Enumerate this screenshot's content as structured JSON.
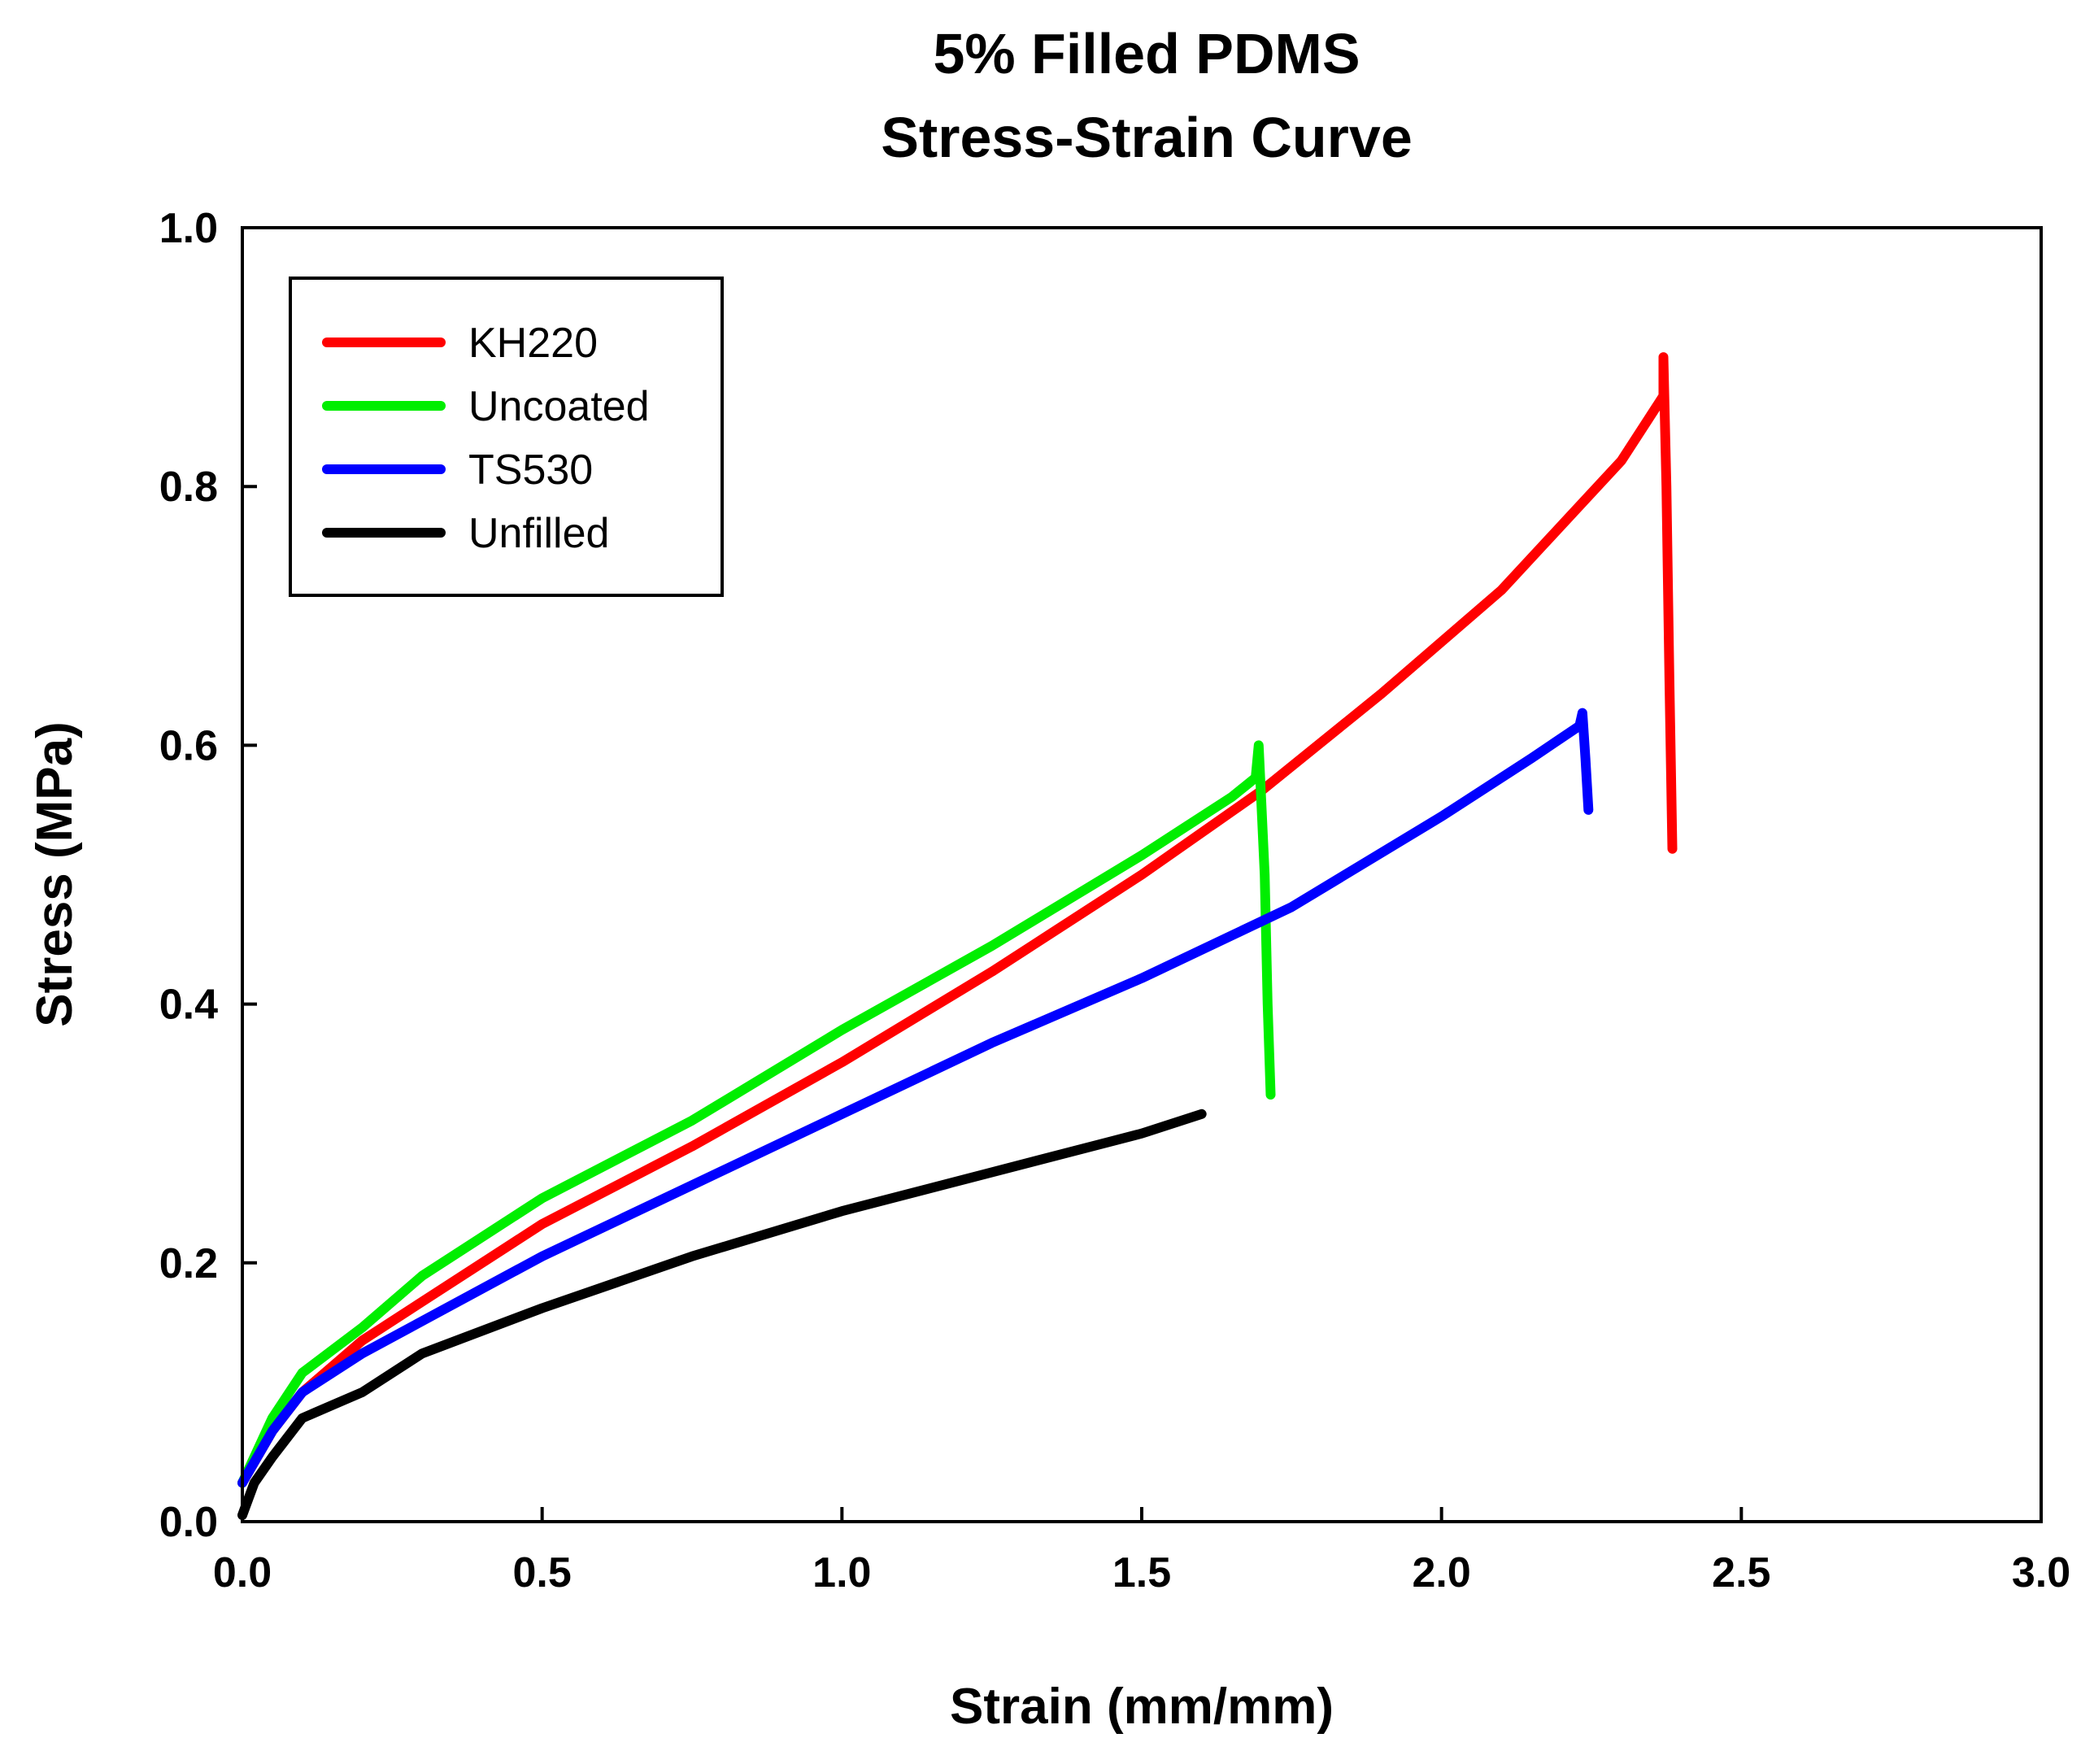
{
  "chart_data": {
    "type": "line",
    "title": [
      "5% Filled PDMS",
      "Stress-Strain Curve"
    ],
    "xlabel": "Strain (mm/mm)",
    "ylabel": "Stress (MPa)",
    "xlim": [
      0.0,
      3.0
    ],
    "ylim": [
      0.0,
      1.0
    ],
    "xticks": [
      0.0,
      0.5,
      1.0,
      1.5,
      2.0,
      2.5,
      3.0
    ],
    "yticks": [
      0.0,
      0.2,
      0.4,
      0.6,
      0.8,
      1.0
    ],
    "xtick_labels": [
      "0.0",
      "0.5",
      "1.0",
      "1.5",
      "2.0",
      "2.5",
      "3.0"
    ],
    "ytick_labels": [
      "0.0",
      "0.2",
      "0.4",
      "0.6",
      "0.8",
      "1.0"
    ],
    "grid": false,
    "legend_position": "top-left",
    "series": [
      {
        "name": "KH220",
        "color": "#ff0000",
        "points": [
          [
            0.0,
            0.03
          ],
          [
            0.05,
            0.07
          ],
          [
            0.1,
            0.1
          ],
          [
            0.2,
            0.14
          ],
          [
            0.3,
            0.17
          ],
          [
            0.5,
            0.23
          ],
          [
            0.75,
            0.29
          ],
          [
            1.0,
            0.355
          ],
          [
            1.25,
            0.425
          ],
          [
            1.5,
            0.5
          ],
          [
            1.7,
            0.565
          ],
          [
            1.9,
            0.64
          ],
          [
            2.1,
            0.72
          ],
          [
            2.3,
            0.82
          ],
          [
            2.37,
            0.87
          ],
          [
            2.37,
            0.9
          ],
          [
            2.375,
            0.8
          ],
          [
            2.38,
            0.65
          ],
          [
            2.385,
            0.52
          ]
        ]
      },
      {
        "name": "Uncoated",
        "color": "#00ee00",
        "points": [
          [
            0.0,
            0.03
          ],
          [
            0.05,
            0.08
          ],
          [
            0.1,
            0.115
          ],
          [
            0.2,
            0.15
          ],
          [
            0.3,
            0.19
          ],
          [
            0.5,
            0.25
          ],
          [
            0.75,
            0.31
          ],
          [
            1.0,
            0.38
          ],
          [
            1.25,
            0.445
          ],
          [
            1.5,
            0.515
          ],
          [
            1.65,
            0.56
          ],
          [
            1.69,
            0.575
          ],
          [
            1.695,
            0.6
          ],
          [
            1.705,
            0.5
          ],
          [
            1.71,
            0.4
          ],
          [
            1.715,
            0.33
          ]
        ]
      },
      {
        "name": "TS530",
        "color": "#0000ff",
        "points": [
          [
            0.0,
            0.03
          ],
          [
            0.05,
            0.07
          ],
          [
            0.1,
            0.1
          ],
          [
            0.2,
            0.13
          ],
          [
            0.3,
            0.155
          ],
          [
            0.5,
            0.205
          ],
          [
            0.75,
            0.26
          ],
          [
            1.0,
            0.315
          ],
          [
            1.25,
            0.37
          ],
          [
            1.5,
            0.42
          ],
          [
            1.75,
            0.475
          ],
          [
            2.0,
            0.545
          ],
          [
            2.15,
            0.59
          ],
          [
            2.23,
            0.615
          ],
          [
            2.235,
            0.625
          ],
          [
            2.24,
            0.59
          ],
          [
            2.245,
            0.55
          ]
        ]
      },
      {
        "name": "Unfilled",
        "color": "#000000",
        "points": [
          [
            0.0,
            0.005
          ],
          [
            0.02,
            0.03
          ],
          [
            0.05,
            0.05
          ],
          [
            0.1,
            0.08
          ],
          [
            0.15,
            0.09
          ],
          [
            0.2,
            0.1
          ],
          [
            0.3,
            0.13
          ],
          [
            0.5,
            0.165
          ],
          [
            0.75,
            0.205
          ],
          [
            1.0,
            0.24
          ],
          [
            1.25,
            0.27
          ],
          [
            1.5,
            0.3
          ],
          [
            1.6,
            0.315
          ]
        ]
      }
    ]
  }
}
